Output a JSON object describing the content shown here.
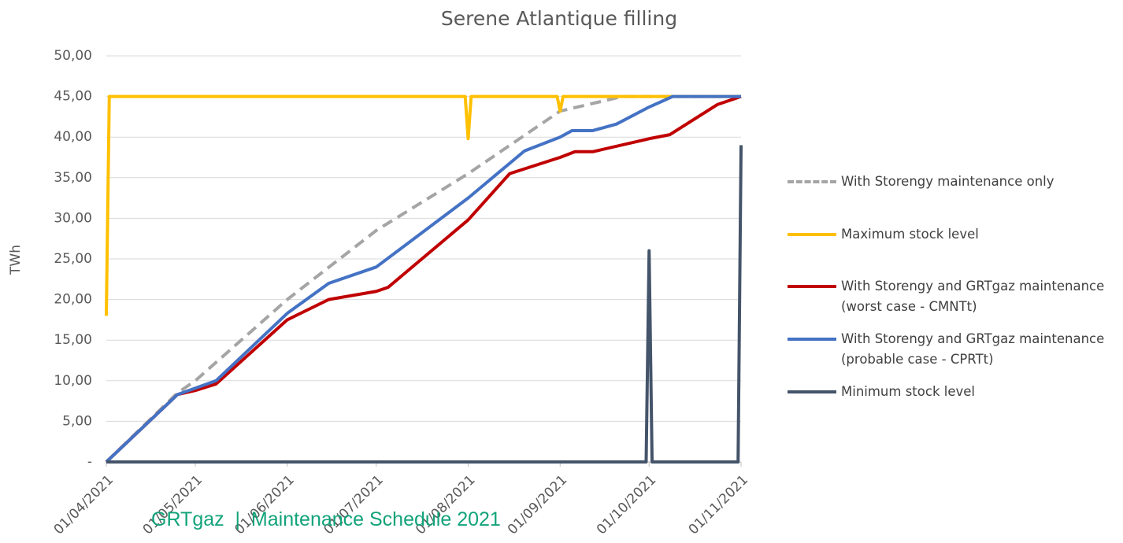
{
  "chart_data": {
    "type": "line",
    "title": "Serene Atlantique filling",
    "y_label": "TWh",
    "xlim": [
      "2021-04-01",
      "2021-11-01"
    ],
    "xticks": [
      {
        "value": "2021-04-01",
        "label": "01/04/2021"
      },
      {
        "value": "2021-05-01",
        "label": "01/05/2021"
      },
      {
        "value": "2021-06-01",
        "label": "01/06/2021"
      },
      {
        "value": "2021-07-01",
        "label": "01/07/2021"
      },
      {
        "value": "2021-08-01",
        "label": "01/08/2021"
      },
      {
        "value": "2021-09-01",
        "label": "01/09/2021"
      },
      {
        "value": "2021-10-01",
        "label": "01/10/2021"
      },
      {
        "value": "2021-11-01",
        "label": "01/11/2021"
      }
    ],
    "ylim": [
      0,
      50
    ],
    "yticks": [
      {
        "value": 0,
        "label": "-"
      },
      {
        "value": 5,
        "label": "5,00"
      },
      {
        "value": 10,
        "label": "10,00"
      },
      {
        "value": 15,
        "label": "15,00"
      },
      {
        "value": 20,
        "label": "20,00"
      },
      {
        "value": 25,
        "label": "25,00"
      },
      {
        "value": 30,
        "label": "30,00"
      },
      {
        "value": 35,
        "label": "35,00"
      },
      {
        "value": 40,
        "label": "40,00"
      },
      {
        "value": 45,
        "label": "45,00"
      },
      {
        "value": 50,
        "label": "50,00"
      }
    ],
    "grid": true,
    "legend": "right",
    "series": [
      {
        "name": "With Storengy maintenance only",
        "color": "#a5a5a5",
        "dash": true,
        "x": [
          "2021-04-01",
          "2021-04-25",
          "2021-05-01",
          "2021-06-01",
          "2021-07-01",
          "2021-08-01",
          "2021-09-01",
          "2021-09-22",
          "2021-11-01"
        ],
        "values": [
          0,
          8.5,
          10,
          20,
          28.5,
          35.5,
          43.2,
          45,
          45
        ]
      },
      {
        "name": "Maximum stock level",
        "color": "#ffc000",
        "dash": false,
        "x": [
          "2021-04-01",
          "2021-04-02",
          "2021-07-31",
          "2021-08-01",
          "2021-08-02",
          "2021-08-31",
          "2021-09-01",
          "2021-09-02",
          "2021-11-01"
        ],
        "values": [
          18,
          45,
          45,
          39.8,
          45,
          45,
          43.2,
          45,
          45
        ]
      },
      {
        "name": "With Storengy and GRTgaz maintenance\n(worst case - CMNTt)",
        "color": "#c00000",
        "dash": false,
        "x": [
          "2021-04-01",
          "2021-04-25",
          "2021-05-01",
          "2021-05-08",
          "2021-06-01",
          "2021-06-15",
          "2021-07-01",
          "2021-07-05",
          "2021-08-01",
          "2021-08-15",
          "2021-09-01",
          "2021-09-06",
          "2021-09-12",
          "2021-10-01",
          "2021-10-08",
          "2021-10-24",
          "2021-11-01"
        ],
        "values": [
          0,
          8.3,
          8.8,
          9.6,
          17.5,
          20,
          21,
          21.5,
          29.8,
          35.5,
          37.5,
          38.2,
          38.2,
          39.8,
          40.3,
          44,
          45
        ]
      },
      {
        "name": "With Storengy and GRTgaz maintenance\n(probable case - CPRTt)",
        "color": "#4472c4",
        "dash": false,
        "x": [
          "2021-04-01",
          "2021-04-25",
          "2021-05-08",
          "2021-06-01",
          "2021-06-15",
          "2021-07-01",
          "2021-08-01",
          "2021-08-20",
          "2021-09-01",
          "2021-09-05",
          "2021-09-12",
          "2021-09-20",
          "2021-10-01",
          "2021-10-09",
          "2021-11-01"
        ],
        "values": [
          0,
          8.3,
          10,
          18.3,
          22,
          24,
          32.5,
          38.3,
          40,
          40.8,
          40.8,
          41.6,
          43.7,
          45,
          45
        ]
      },
      {
        "name": "Minimum stock level",
        "color": "#44546a",
        "dash": false,
        "x": [
          "2021-04-01",
          "2021-09-30",
          "2021-10-01",
          "2021-10-02",
          "2021-10-31",
          "2021-11-01"
        ],
        "values": [
          0,
          0,
          26,
          0,
          0,
          39
        ]
      }
    ]
  },
  "footer": "GRTgaz  |  Maintenance Schedule 2021"
}
